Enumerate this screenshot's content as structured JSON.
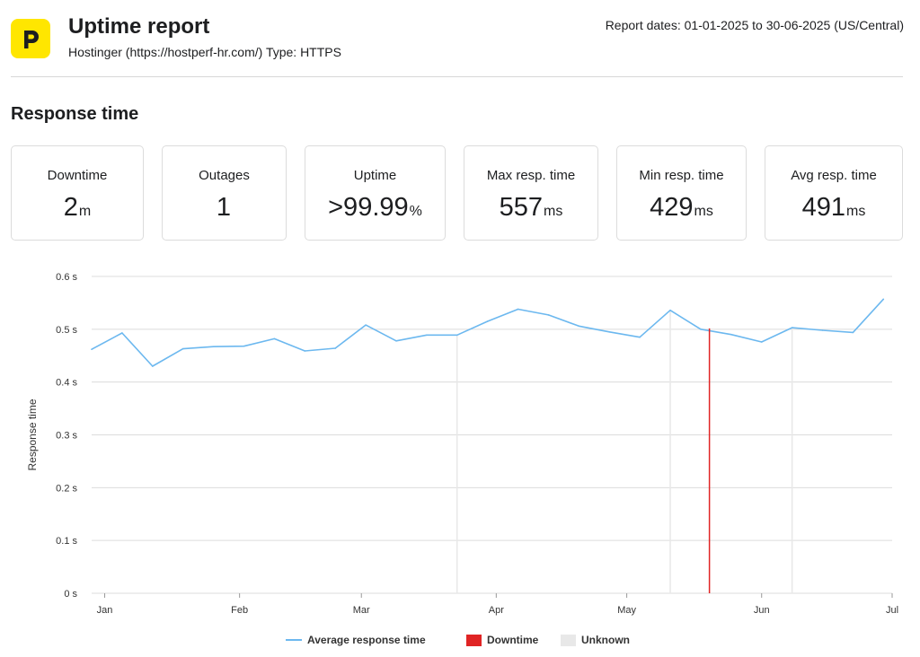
{
  "header": {
    "title": "Uptime report",
    "subtitle": "Hostinger (https://hostperf-hr.com/) Type: HTTPS",
    "dates": "Report dates: 01-01-2025 to 30-06-2025 (US/Central)",
    "logo_icon": "hostinger-logo-icon"
  },
  "section_title": "Response time",
  "cards": [
    {
      "label": "Downtime",
      "value": "2",
      "unit": "m"
    },
    {
      "label": "Outages",
      "value": "1",
      "unit": ""
    },
    {
      "label": "Uptime",
      "value": ">99.99",
      "unit": "%"
    },
    {
      "label": "Max resp. time",
      "value": "557",
      "unit": "ms"
    },
    {
      "label": "Min resp. time",
      "value": "429",
      "unit": "ms"
    },
    {
      "label": "Avg resp. time",
      "value": "491",
      "unit": "ms"
    }
  ],
  "colors": {
    "line": "#6cb8ef",
    "downtime": "#e02424",
    "unknown": "#e8e8e8",
    "grid": "#dcdcdc"
  },
  "legend": [
    {
      "label": "Average response time",
      "kind": "line"
    },
    {
      "label": "Downtime",
      "kind": "box",
      "color": "#e02424"
    },
    {
      "label": "Unknown",
      "kind": "box",
      "color": "#e8e8e8"
    }
  ],
  "chart_data": {
    "type": "line",
    "title": "",
    "ylabel": "Response time",
    "ylim": [
      0,
      0.6
    ],
    "yticks": [
      {
        "value": 0,
        "label": "0 s"
      },
      {
        "value": 0.1,
        "label": "0.1 s"
      },
      {
        "value": 0.2,
        "label": "0.2 s"
      },
      {
        "value": 0.3,
        "label": "0.3 s"
      },
      {
        "value": 0.4,
        "label": "0.4 s"
      },
      {
        "value": 0.5,
        "label": "0.5 s"
      },
      {
        "value": 0.6,
        "label": "0.6 s"
      }
    ],
    "xlim": [
      "2024-12-29",
      "2025-07-01"
    ],
    "xticks": [
      {
        "date": "2025-01-01",
        "label": "Jan"
      },
      {
        "date": "2025-02-01",
        "label": "Feb"
      },
      {
        "date": "2025-03-01",
        "label": "Mar"
      },
      {
        "date": "2025-04-01",
        "label": "Apr"
      },
      {
        "date": "2025-05-01",
        "label": "May"
      },
      {
        "date": "2025-06-01",
        "label": "Jun"
      },
      {
        "date": "2025-07-01",
        "label": "Jul"
      }
    ],
    "series": [
      {
        "name": "Average response time",
        "points": [
          [
            "2024-12-29",
            0.462
          ],
          [
            "2025-01-05",
            0.493
          ],
          [
            "2025-01-12",
            0.43
          ],
          [
            "2025-01-19",
            0.463
          ],
          [
            "2025-01-26",
            0.467
          ],
          [
            "2025-02-02",
            0.468
          ],
          [
            "2025-02-09",
            0.482
          ],
          [
            "2025-02-16",
            0.459
          ],
          [
            "2025-02-23",
            0.464
          ],
          [
            "2025-03-02",
            0.508
          ],
          [
            "2025-03-09",
            0.478
          ],
          [
            "2025-03-16",
            0.489
          ],
          [
            "2025-03-23",
            0.489
          ],
          [
            "2025-03-30",
            0.515
          ],
          [
            "2025-04-06",
            0.538
          ],
          [
            "2025-04-13",
            0.527
          ],
          [
            "2025-04-20",
            0.506
          ],
          [
            "2025-04-27",
            0.495
          ],
          [
            "2025-05-04",
            0.485
          ],
          [
            "2025-05-11",
            0.536
          ],
          [
            "2025-05-18",
            0.5
          ],
          [
            "2025-05-25",
            0.49
          ],
          [
            "2025-06-01",
            0.476
          ],
          [
            "2025-06-08",
            0.503
          ],
          [
            "2025-06-15",
            0.498
          ],
          [
            "2025-06-22",
            0.494
          ],
          [
            "2025-06-29",
            0.557
          ]
        ]
      }
    ],
    "downtime_markers": [
      "2025-05-20"
    ],
    "unknown_markers": [
      "2025-03-23",
      "2025-05-11",
      "2025-06-08"
    ]
  }
}
